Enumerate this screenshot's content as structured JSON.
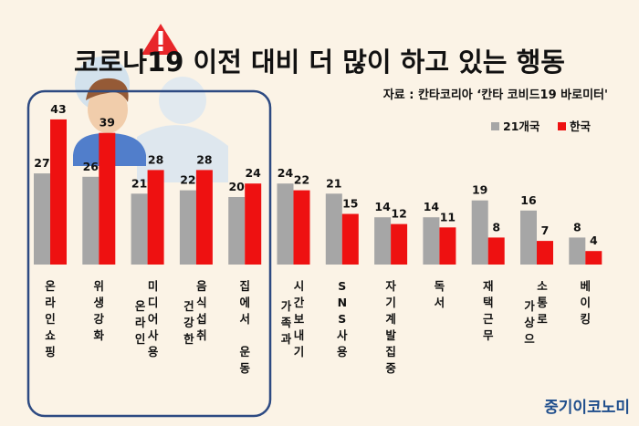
{
  "title": "코로나19 이전 대비 더 많이 하고 있는 행동",
  "source": "자료 : 칸타코리아 ‘칸타 코비드19 바로미터'",
  "brand": "중기이코노미",
  "colors": {
    "global": "#a6a6a6",
    "korea": "#ee1111",
    "highlight_border": "#2d4a82",
    "brand": "#1f4e8c"
  },
  "chart_data": {
    "type": "bar",
    "categories": [
      "온라인쇼핑",
      "위생강화",
      "미디어사용",
      "건강한 음식섭취",
      "집에서 운동",
      "가족과 시간보내기",
      "SNS사용",
      "자기계발 집중",
      "독서",
      "재택근무",
      "가상소통으로",
      "베이킹"
    ],
    "category_lines": [
      [
        "온라인쇼핑"
      ],
      [
        "위생강화"
      ],
      [
        "미디어사용",
        "온라인"
      ],
      [
        "음식섭취",
        "건강한"
      ],
      [
        "집에서 운동"
      ],
      [
        "시간보내기",
        "가족과"
      ],
      [
        "SNS사용"
      ],
      [
        "자기계발집중"
      ],
      [
        "독서"
      ],
      [
        "재택근무"
      ],
      [
        "소통로",
        "가상으"
      ],
      [
        "베이킹"
      ]
    ],
    "series": [
      {
        "name": "21개국",
        "values": [
          27,
          26,
          21,
          22,
          20,
          24,
          21,
          14,
          14,
          19,
          16,
          8
        ]
      },
      {
        "name": "한국",
        "values": [
          43,
          39,
          28,
          28,
          24,
          22,
          15,
          12,
          11,
          8,
          7,
          4
        ]
      }
    ],
    "legend_position": "top-right",
    "grid": false,
    "highlighted_categories": 5
  }
}
